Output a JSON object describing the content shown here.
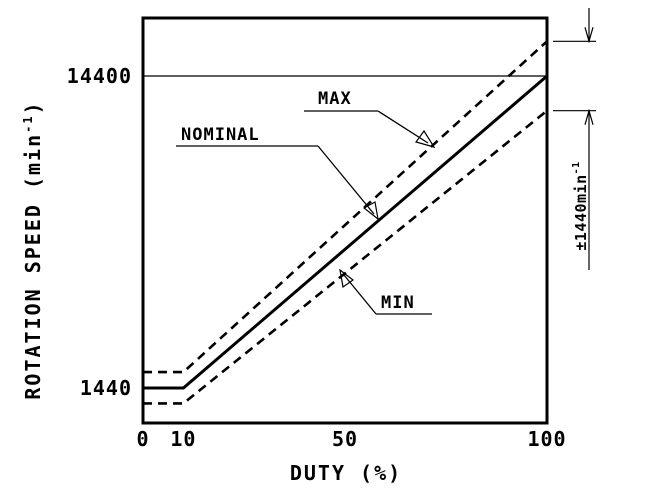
{
  "chart_data": {
    "type": "line",
    "xlabel": "DUTY (%)",
    "ylabel": "ROTATION SPEED (min",
    "ylabel_sup": "-1",
    "ylabel_close": ")",
    "xlim": [
      0,
      100
    ],
    "ylim": [
      0,
      16000
    ],
    "x_ticks": [
      0,
      10,
      50,
      100
    ],
    "x_tick_labels": [
      "0",
      "10",
      "50",
      "100"
    ],
    "y_ticks": [
      1440,
      14400
    ],
    "y_tick_labels": [
      "1440",
      "14400"
    ],
    "series": [
      {
        "name": "MAX",
        "style": "dashed",
        "x": [
          0,
          10,
          100
        ],
        "y": [
          2100,
          2100,
          15840
        ]
      },
      {
        "name": "NOMINAL",
        "style": "solid",
        "x": [
          0,
          10,
          100
        ],
        "y": [
          1440,
          1440,
          14400
        ]
      },
      {
        "name": "MIN",
        "style": "dashed",
        "x": [
          0,
          10,
          100
        ],
        "y": [
          800,
          800,
          12960
        ]
      }
    ],
    "reference_line": {
      "y": 14400
    },
    "tolerance_label": "±1440min",
    "tolerance_sup": "-1",
    "tolerance_range": [
      12960,
      15840
    ]
  }
}
